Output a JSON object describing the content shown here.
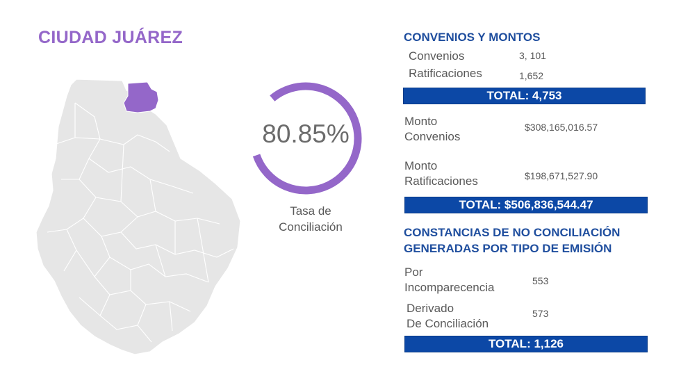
{
  "title": "CIUDAD JUÁREZ",
  "rate": {
    "value_text": "80.85%",
    "fraction": 0.8085,
    "label_line1": "Tasa de",
    "label_line2": "Conciliación"
  },
  "colors": {
    "accent": "#9467c9",
    "heading": "#1f4e9e",
    "bar": "#0c48a6",
    "map_fill": "#e5e5e5",
    "map_highlight": "#9467c9"
  },
  "convenios": {
    "heading": "CONVENIOS Y MONTOS",
    "rows": [
      {
        "label": "Convenios",
        "value": "3, 101"
      },
      {
        "label": "Ratificaciones",
        "value": "1,652"
      }
    ],
    "total": "TOTAL: 4,753"
  },
  "montos": {
    "rows": [
      {
        "label1": "Monto",
        "label2": "Convenios",
        "value": "$308,165,016.57"
      },
      {
        "label1": "Monto",
        "label2": "Ratificaciones",
        "value": "$198,671,527.90"
      }
    ],
    "total": "TOTAL: $506,836,544.47"
  },
  "constancias": {
    "heading_line1": "CONSTANCIAS DE NO CONCILIACIÓN",
    "heading_line2": "GENERADAS POR TIPO DE EMISIÓN",
    "rows": [
      {
        "label1": "Por",
        "label2": "Incomparecencia",
        "value": "553"
      },
      {
        "label1": "Derivado",
        "label2": "De Conciliación",
        "value": "573"
      }
    ],
    "total": "TOTAL: 1,126"
  }
}
